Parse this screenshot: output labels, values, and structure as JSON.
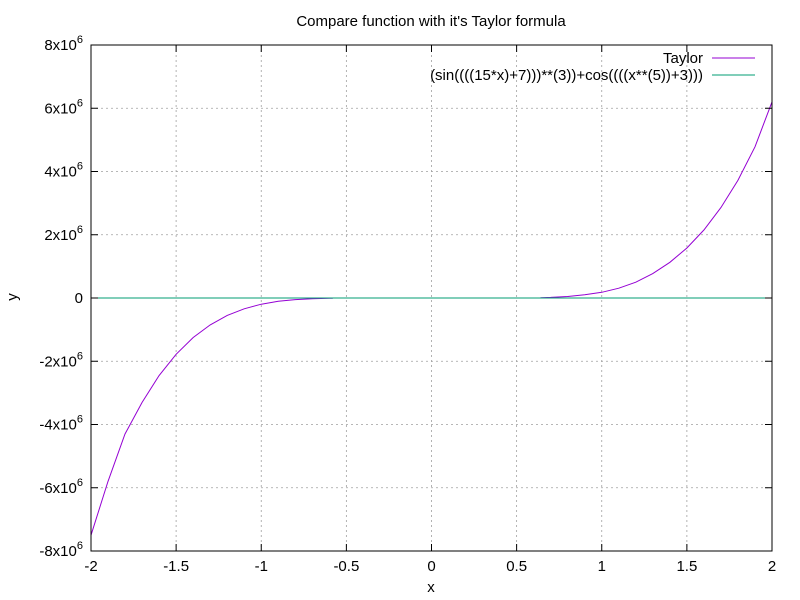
{
  "chart_data": {
    "type": "line",
    "title": "Compare function with it's Taylor formula",
    "xlabel": "x",
    "ylabel": "y",
    "xlim": [
      -2,
      2
    ],
    "ylim": [
      -8000000,
      8000000
    ],
    "grid": true,
    "legend_position": "top-right",
    "x_ticks": [
      {
        "value": -2,
        "label": "-2"
      },
      {
        "value": -1.5,
        "label": "-1.5"
      },
      {
        "value": -1,
        "label": "-1"
      },
      {
        "value": -0.5,
        "label": "-0.5"
      },
      {
        "value": 0,
        "label": "0"
      },
      {
        "value": 0.5,
        "label": "0.5"
      },
      {
        "value": 1,
        "label": "1"
      },
      {
        "value": 1.5,
        "label": "1.5"
      },
      {
        "value": 2,
        "label": "2"
      }
    ],
    "y_ticks": [
      {
        "value": 8000000,
        "mant": "8x10",
        "exp": "6"
      },
      {
        "value": 6000000,
        "mant": "6x10",
        "exp": "6"
      },
      {
        "value": 4000000,
        "mant": "4x10",
        "exp": "6"
      },
      {
        "value": 2000000,
        "mant": "2x10",
        "exp": "6"
      },
      {
        "value": 0,
        "mant": "0",
        "exp": ""
      },
      {
        "value": -2000000,
        "mant": "-2x10",
        "exp": "6"
      },
      {
        "value": -4000000,
        "mant": "-4x10",
        "exp": "6"
      },
      {
        "value": -6000000,
        "mant": "-6x10",
        "exp": "6"
      },
      {
        "value": -8000000,
        "mant": "-8x10",
        "exp": "6"
      }
    ],
    "series": [
      {
        "name": "Taylor",
        "color": "#9400d3",
        "segments": [
          {
            "x": [
              -2.0,
              -1.9,
              -1.8,
              -1.7,
              -1.6,
              -1.5,
              -1.4,
              -1.3,
              -1.2,
              -1.1,
              -1.0,
              -0.9,
              -0.8,
              -0.7,
              -0.6,
              -0.58
            ],
            "y": [
              -7500000,
              -5800000,
              -4300000,
              -3300000,
              -2450000,
              -1780000,
              -1250000,
              -850000,
              -550000,
              -340000,
              -195000,
              -105000,
              -50000,
              -22000,
              -8000,
              -6000
            ]
          },
          {
            "x": [
              0.64,
              0.7,
              0.8,
              0.9,
              1.0,
              1.1,
              1.2,
              1.3,
              1.4,
              1.5,
              1.6,
              1.7,
              1.8,
              1.9,
              2.0
            ],
            "y": [
              8000,
              20000,
              48000,
              100000,
              180000,
              310000,
              500000,
              770000,
              1130000,
              1580000,
              2150000,
              2860000,
              3720000,
              4780000,
              6200000
            ]
          }
        ]
      },
      {
        "name": "(sin((((15*x)+7)))**(3))+cos((((x**(5))+3)))",
        "color": "#009e73",
        "x": [
          -2,
          2
        ],
        "y": [
          0,
          0
        ]
      }
    ]
  }
}
